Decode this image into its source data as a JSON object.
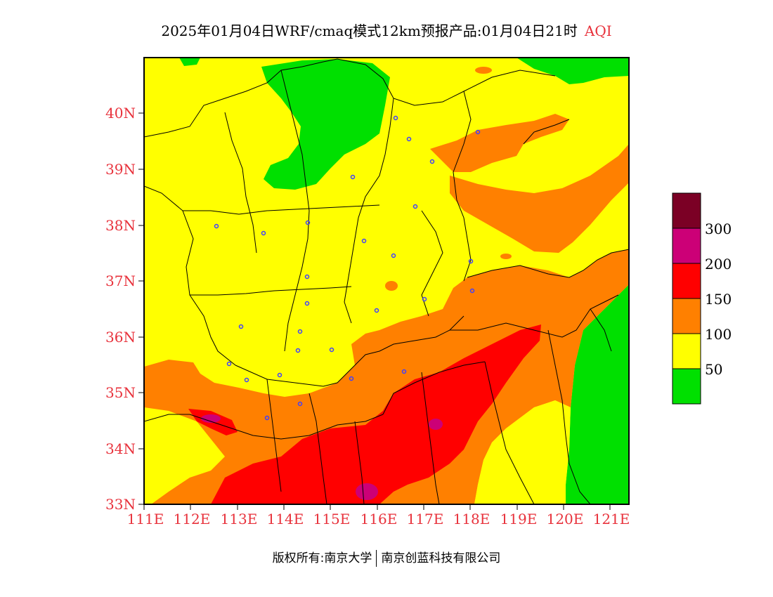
{
  "header": {
    "title": "2025年01月04日WRF/cmaq模式12km预报产品:01月04日21时",
    "variable": "AQI"
  },
  "map": {
    "lat_labels": [
      "40N",
      "39N",
      "38N",
      "37N",
      "36N",
      "35N",
      "34N",
      "33N"
    ],
    "lon_labels": [
      "111E",
      "112E",
      "113E",
      "114E",
      "115E",
      "116E",
      "117E",
      "118E",
      "119E",
      "120E",
      "121E"
    ],
    "lat_range": [
      33,
      41
    ],
    "lon_range": [
      111,
      121.4
    ]
  },
  "legend": {
    "labels": [
      "300",
      "200",
      "150",
      "100",
      "50"
    ],
    "bins": [
      {
        "color": "#7b0025"
      },
      {
        "color": "#cc0077"
      },
      {
        "color": "#ff0000"
      },
      {
        "color": "#ff8000"
      },
      {
        "color": "#ffff00"
      },
      {
        "color": "#00e000"
      }
    ]
  },
  "footer": {
    "copyright": "版权所有:南京大学",
    "company": "南京创蓝科技有限公司"
  }
}
